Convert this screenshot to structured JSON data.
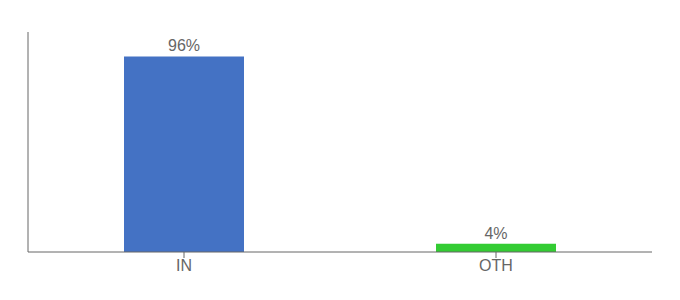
{
  "chart_data": {
    "type": "bar",
    "categories": [
      "IN",
      "OTH"
    ],
    "values": [
      96,
      4
    ],
    "value_labels": [
      "96%",
      "4%"
    ],
    "colors": [
      "#4472c4",
      "#33cc33"
    ],
    "ylim": [
      0,
      108
    ],
    "data_labels": true,
    "tick_labels": "x",
    "grid": false
  }
}
